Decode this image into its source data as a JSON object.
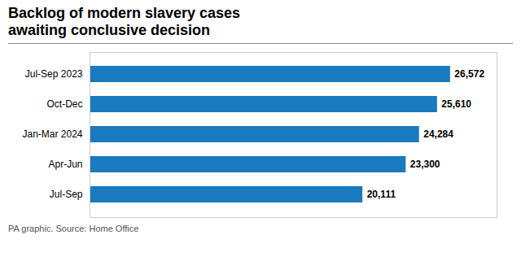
{
  "chart_data": {
    "type": "bar",
    "orientation": "horizontal",
    "title": "Backlog of modern slavery cases\nawaiting conclusive decision",
    "source": "PA graphic. Source: Home Office",
    "categories": [
      "Jul-Sep 2023",
      "Oct-Dec",
      "Jan-Mar 2024",
      "Apr-Jun",
      "Jul-Sep"
    ],
    "values": [
      26572,
      25610,
      24284,
      23300,
      20111
    ],
    "value_labels": [
      "26,572",
      "25,610",
      "24,284",
      "23,300",
      "20,111"
    ],
    "data_labels": true,
    "color": "#1a7abf",
    "xlim": [
      0,
      30000
    ],
    "tick_labels": "y",
    "grid": false
  }
}
